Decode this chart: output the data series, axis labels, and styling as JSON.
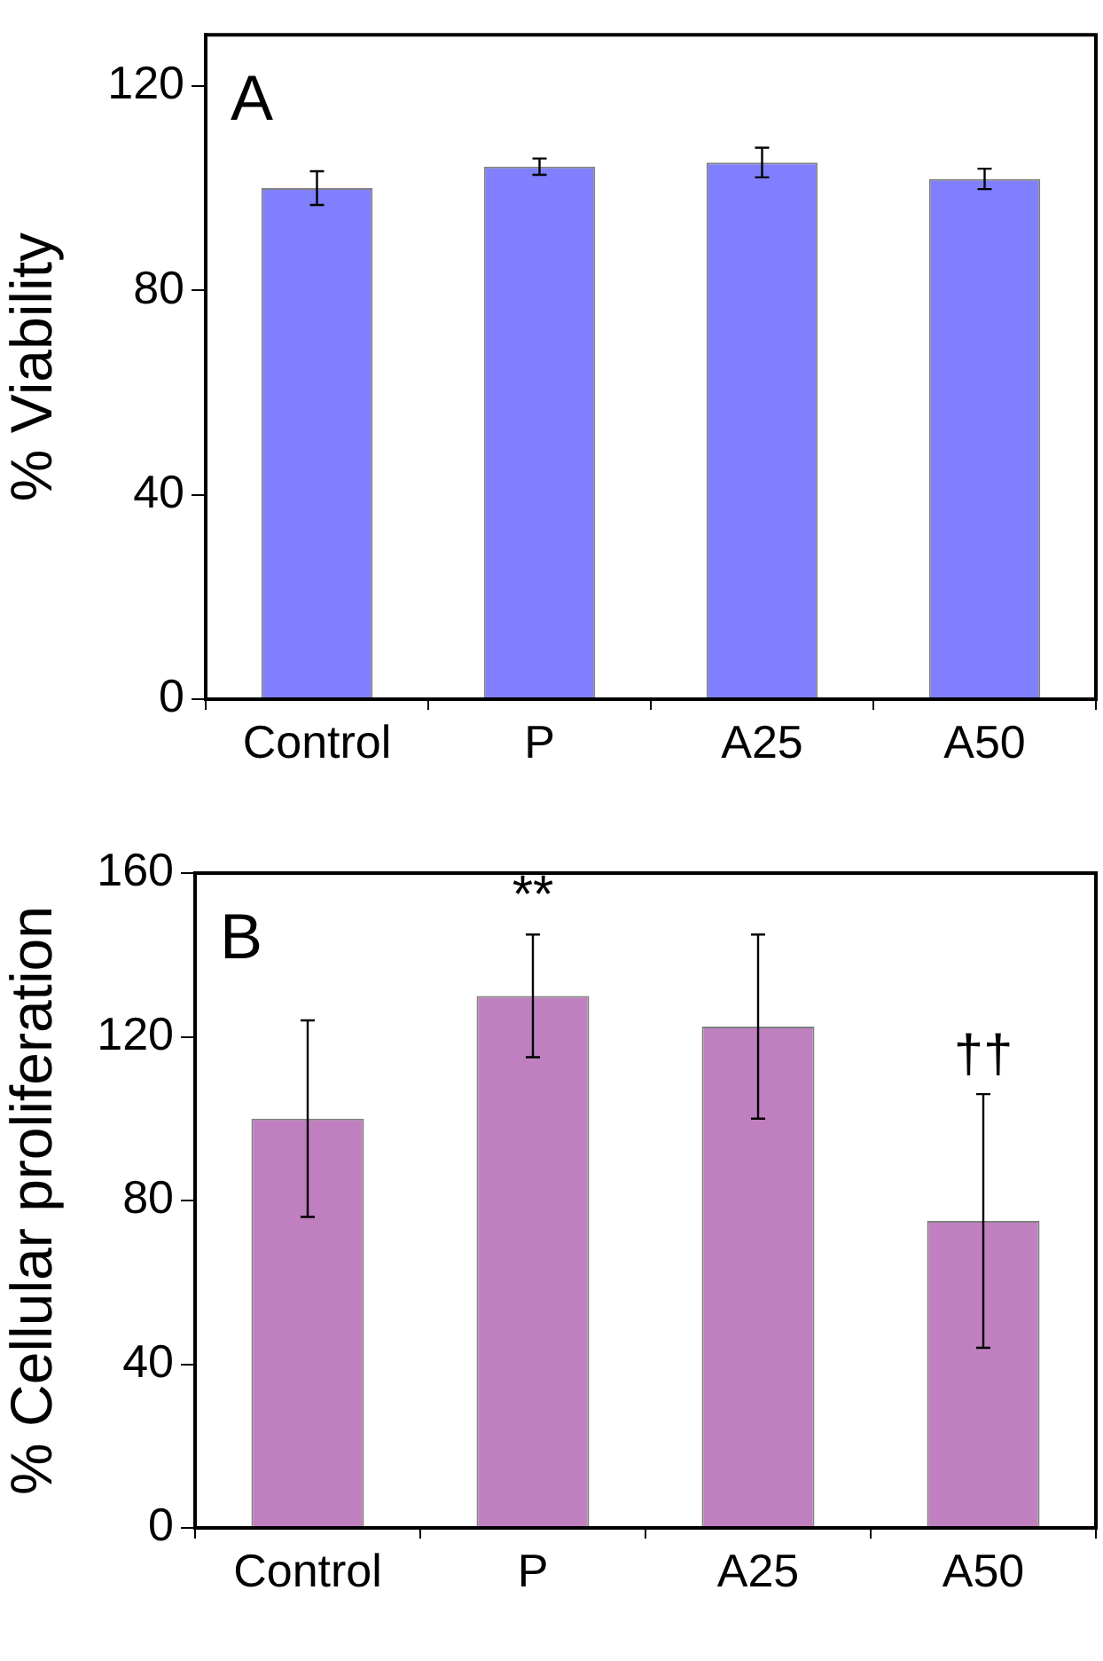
{
  "chart_data": [
    {
      "type": "bar",
      "ylabel": "% Viability",
      "categories": [
        "Control",
        "P",
        "A25",
        "A50"
      ],
      "values": [
        100,
        104.2,
        105,
        101.8
      ],
      "errors": [
        3.3,
        1.6,
        2.9,
        2.0
      ],
      "color": "#8080ff",
      "ylim": [
        0,
        130
      ],
      "yticks": [
        0,
        40,
        80,
        120
      ],
      "grid": false,
      "legend": false,
      "annotations": [
        "A"
      ]
    },
    {
      "type": "bar",
      "ylabel": "% Cellular proliferation",
      "categories": [
        "Control",
        "P",
        "A25",
        "A50"
      ],
      "values": [
        100,
        130,
        122.5,
        75
      ],
      "errors": [
        24,
        15,
        22.5,
        31
      ],
      "color": "#c080c0",
      "ylim": [
        0,
        160
      ],
      "yticks": [
        0,
        40,
        80,
        120,
        160
      ],
      "grid": false,
      "legend": false,
      "annotations": [
        "B",
        "**",
        "††"
      ]
    }
  ]
}
